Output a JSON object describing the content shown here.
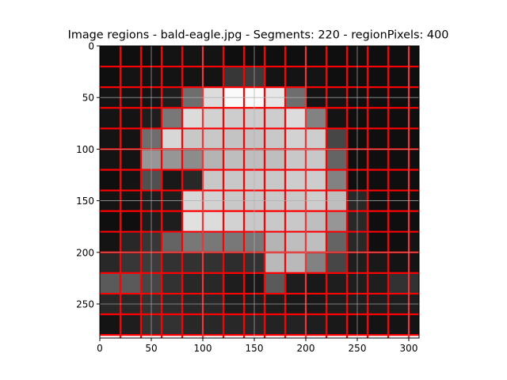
{
  "chart_data": {
    "type": "heatmap",
    "title": "Image regions - bald-eagle.jpg - Segments: 220 - regionPixels: 400",
    "xlabel": "",
    "ylabel": "",
    "xlim": [
      0,
      310
    ],
    "ylim": [
      283,
      0
    ],
    "x_ticks": [
      0,
      50,
      100,
      150,
      200,
      250,
      300
    ],
    "y_ticks": [
      0,
      50,
      100,
      150,
      200,
      250
    ],
    "grid": true,
    "cell_size": 20,
    "boundary_color": "#ff0000",
    "grid_color": "#b0b0b0",
    "intensity_grid": [
      [
        15,
        15,
        15,
        20,
        20,
        20,
        15,
        15,
        15,
        15,
        15,
        15,
        15,
        15,
        15,
        15
      ],
      [
        15,
        20,
        20,
        20,
        20,
        20,
        55,
        60,
        20,
        20,
        20,
        15,
        15,
        15,
        15,
        15
      ],
      [
        20,
        20,
        20,
        30,
        110,
        220,
        250,
        250,
        230,
        110,
        20,
        20,
        15,
        15,
        15,
        15
      ],
      [
        20,
        20,
        30,
        120,
        220,
        210,
        205,
        205,
        205,
        220,
        130,
        20,
        15,
        15,
        15,
        15
      ],
      [
        20,
        20,
        110,
        215,
        200,
        200,
        195,
        195,
        200,
        210,
        205,
        70,
        15,
        15,
        15,
        15
      ],
      [
        20,
        20,
        150,
        150,
        140,
        180,
        190,
        190,
        190,
        200,
        200,
        100,
        15,
        15,
        15,
        15
      ],
      [
        15,
        20,
        80,
        25,
        40,
        200,
        200,
        200,
        200,
        205,
        205,
        130,
        15,
        15,
        15,
        15
      ],
      [
        20,
        20,
        30,
        30,
        215,
        210,
        200,
        200,
        200,
        200,
        205,
        190,
        40,
        15,
        15,
        15
      ],
      [
        15,
        15,
        30,
        30,
        225,
        220,
        210,
        200,
        200,
        200,
        190,
        150,
        40,
        15,
        15,
        15
      ],
      [
        20,
        40,
        55,
        100,
        120,
        120,
        120,
        120,
        180,
        190,
        190,
        100,
        40,
        15,
        15,
        20
      ],
      [
        40,
        55,
        60,
        50,
        50,
        50,
        45,
        50,
        185,
        185,
        130,
        70,
        30,
        25,
        20,
        20
      ],
      [
        90,
        90,
        70,
        50,
        40,
        40,
        30,
        25,
        90,
        30,
        25,
        30,
        30,
        30,
        50,
        50
      ],
      [
        40,
        40,
        50,
        45,
        40,
        40,
        30,
        30,
        30,
        25,
        25,
        30,
        30,
        30,
        30,
        30
      ],
      [
        20,
        30,
        50,
        50,
        40,
        40,
        40,
        40,
        35,
        35,
        30,
        25,
        20,
        20,
        20,
        20
      ]
    ]
  }
}
